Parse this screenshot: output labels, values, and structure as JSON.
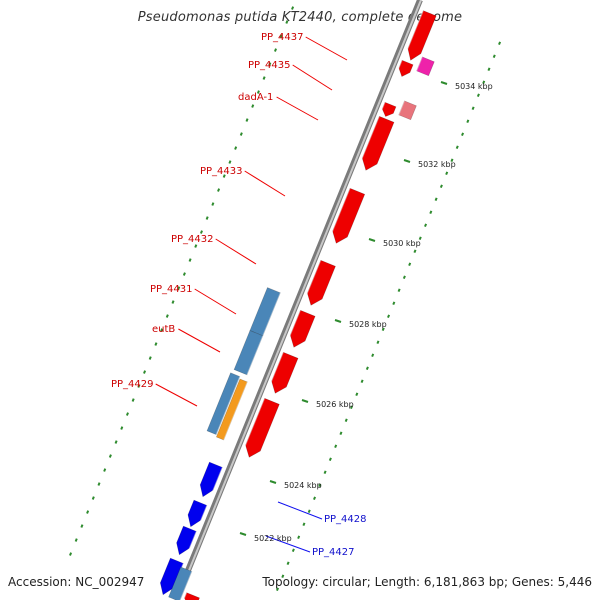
{
  "title": "Pseudomonas putida KT2440, complete genome",
  "footer": {
    "accession": "Accession: NC_002947",
    "topology": "Topology: circular; Length: 6,181,863 bp; Genes: 5,446"
  },
  "colors": {
    "backbone": "#8c8c8c",
    "tick": "#2e8b2e",
    "forward_gene": "#ee0000",
    "reverse_gene": "#0000ee",
    "pseudo_gene": "#e8747c",
    "rna_gene": "#ee22aa",
    "feature_blue": "#4a86b8",
    "feature_orange": "#f39a1e",
    "forward_label": "#cc0000",
    "reverse_label": "#1010cc"
  },
  "kbp_ticks": [
    "5022 kbp",
    "5024 kbp",
    "5026 kbp",
    "5028 kbp",
    "5030 kbp",
    "5032 kbp",
    "5034 kbp"
  ],
  "forward_gene_labels": [
    "PP_4437",
    "PP_4435",
    "dadA-1",
    "PP_4433",
    "PP_4432",
    "PP_4431",
    "eutB",
    "PP_4429"
  ],
  "reverse_gene_labels": [
    "PP_4428",
    "PP_4427"
  ]
}
